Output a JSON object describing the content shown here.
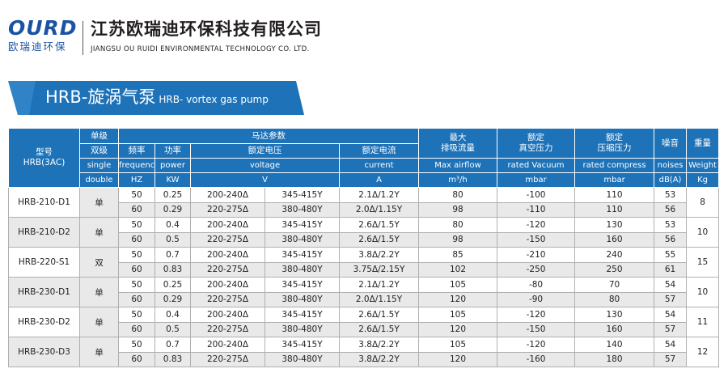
{
  "header": {
    "logo_word": "OURD",
    "logo_cn": "欧瑞迪环保",
    "company_cn": "江苏欧瑞迪环保科技有限公司",
    "company_en": "JIANGSU OU RUIDI ENVIRONMENTAL TECHNOLOGY CO. LTD."
  },
  "band": {
    "title": "HRB-旋涡气泵",
    "subtitle": "HRB- vortex gas pump",
    "color": "#1d72b8"
  },
  "table": {
    "head": {
      "model": "型号",
      "model_sub": "HRB(3AC)",
      "single_level": "单级",
      "double_level": "双级",
      "single_en": "single",
      "double_en": "double",
      "motor_params": "马达参数",
      "frequency": "频率",
      "frequency_en": "frequency",
      "frequency_unit": "HZ",
      "power": "功率",
      "power_en": "power",
      "power_unit": "KW",
      "voltage": "额定电压",
      "voltage_en": "voltage",
      "voltage_unit": "V",
      "current": "额定电流",
      "current_en": "current",
      "current_unit": "A",
      "airflow_1": "最大",
      "airflow_2": "排吸流量",
      "airflow_en": "Max airflow",
      "airflow_unit": "m³/h",
      "vacuum_1": "额定",
      "vacuum_2": "真空压力",
      "vacuum_en": "rated Vacuum",
      "vacuum_unit": "mbar",
      "compress_1": "额定",
      "compress_2": "压缩压力",
      "compress_en": "rated compress",
      "compress_unit": "mbar",
      "noise": "噪音",
      "noise_en": "noises",
      "noise_unit": "dB(A)",
      "weight": "重量",
      "weight_en": "Weight",
      "weight_unit": "Kg"
    },
    "models": [
      {
        "model": "HRB-210-D1",
        "stage": "单",
        "weight": "8",
        "rows": [
          {
            "freq": "50",
            "power": "0.25",
            "v1": "200-240Δ",
            "v2": "345-415Y",
            "current": "2.1Δ/1.2Y",
            "airflow": "80",
            "vacuum": "-100",
            "compress": "110",
            "noise": "53"
          },
          {
            "freq": "60",
            "power": "0.29",
            "v1": "220-275Δ",
            "v2": "380-480Y",
            "current": "2.0Δ/1.15Y",
            "airflow": "98",
            "vacuum": "-110",
            "compress": "110",
            "noise": "56"
          }
        ]
      },
      {
        "model": "HRB-210-D2",
        "stage": "单",
        "weight": "10",
        "rows": [
          {
            "freq": "50",
            "power": "0.4",
            "v1": "200-240Δ",
            "v2": "345-415Y",
            "current": "2.6Δ/1.5Y",
            "airflow": "80",
            "vacuum": "-120",
            "compress": "130",
            "noise": "53"
          },
          {
            "freq": "60",
            "power": "0.5",
            "v1": "220-275Δ",
            "v2": "380-480Y",
            "current": "2.6Δ/1.5Y",
            "airflow": "98",
            "vacuum": "-150",
            "compress": "160",
            "noise": "56"
          }
        ]
      },
      {
        "model": "HRB-220-S1",
        "stage": "双",
        "weight": "15",
        "rows": [
          {
            "freq": "50",
            "power": "0.7",
            "v1": "200-240Δ",
            "v2": "345-415Y",
            "current": "3.8Δ/2.2Y",
            "airflow": "85",
            "vacuum": "-210",
            "compress": "240",
            "noise": "55"
          },
          {
            "freq": "60",
            "power": "0.83",
            "v1": "220-275Δ",
            "v2": "380-480Y",
            "current": "3.75Δ/2.15Y",
            "airflow": "102",
            "vacuum": "-250",
            "compress": "250",
            "noise": "61"
          }
        ]
      },
      {
        "model": "HRB-230-D1",
        "stage": "单",
        "weight": "10",
        "rows": [
          {
            "freq": "50",
            "power": "0.25",
            "v1": "200-240Δ",
            "v2": "345-415Y",
            "current": "2.1Δ/1.2Y",
            "airflow": "105",
            "vacuum": "-80",
            "compress": "70",
            "noise": "54"
          },
          {
            "freq": "60",
            "power": "0.29",
            "v1": "220-275Δ",
            "v2": "380-480Y",
            "current": "2.0Δ/1.15Y",
            "airflow": "120",
            "vacuum": "-90",
            "compress": "80",
            "noise": "57"
          }
        ]
      },
      {
        "model": "HRB-230-D2",
        "stage": "单",
        "weight": "11",
        "rows": [
          {
            "freq": "50",
            "power": "0.4",
            "v1": "200-240Δ",
            "v2": "345-415Y",
            "current": "2.6Δ/1.5Y",
            "airflow": "105",
            "vacuum": "-120",
            "compress": "130",
            "noise": "54"
          },
          {
            "freq": "60",
            "power": "0.5",
            "v1": "220-275Δ",
            "v2": "380-480Y",
            "current": "2.6Δ/1.5Y",
            "airflow": "120",
            "vacuum": "-150",
            "compress": "160",
            "noise": "57"
          }
        ]
      },
      {
        "model": "HRB-230-D3",
        "stage": "单",
        "weight": "12",
        "rows": [
          {
            "freq": "50",
            "power": "0.7",
            "v1": "200-240Δ",
            "v2": "345-415Y",
            "current": "3.8Δ/2.2Y",
            "airflow": "105",
            "vacuum": "-120",
            "compress": "140",
            "noise": "54"
          },
          {
            "freq": "60",
            "power": "0.83",
            "v1": "220-275Δ",
            "v2": "380-480Y",
            "current": "3.8Δ/2.2Y",
            "airflow": "120",
            "vacuum": "-160",
            "compress": "180",
            "noise": "57"
          }
        ]
      }
    ]
  }
}
